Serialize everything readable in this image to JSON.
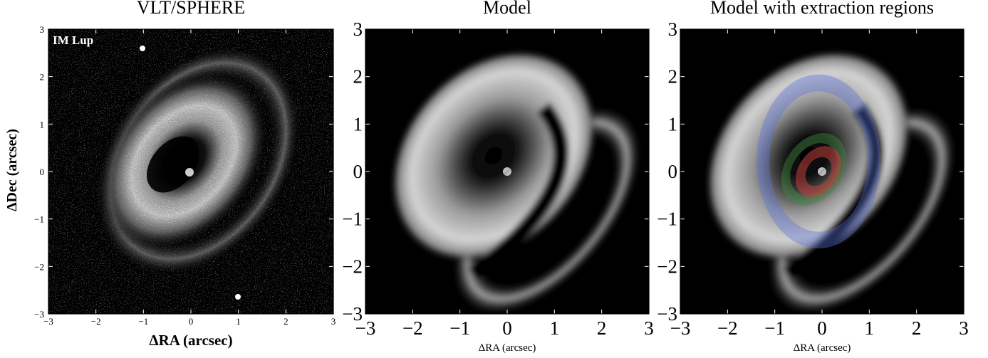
{
  "panels": [
    {
      "title": "VLT/SPHERE",
      "label": "IM Lup",
      "xlabel": "ΔRA (arcsec)",
      "ylabel": "ΔDec (arcsec)",
      "ticks": [
        -3,
        -2,
        -1,
        0,
        1,
        2,
        3
      ]
    },
    {
      "title": "Model",
      "xlabel": "ΔRA (arcsec)",
      "ticks": [
        -3,
        -2,
        -1,
        0,
        1,
        2,
        3
      ]
    },
    {
      "title": "Model with extraction regions",
      "xlabel": "ΔRA (arcsec)",
      "ticks": [
        -3,
        -2,
        -1,
        0,
        1,
        2,
        3
      ]
    }
  ],
  "colors": {
    "background": "#000000",
    "region_inner": "#c0403a",
    "region_middle": "#3f8a3f",
    "region_outer": "#5a74d8"
  }
}
